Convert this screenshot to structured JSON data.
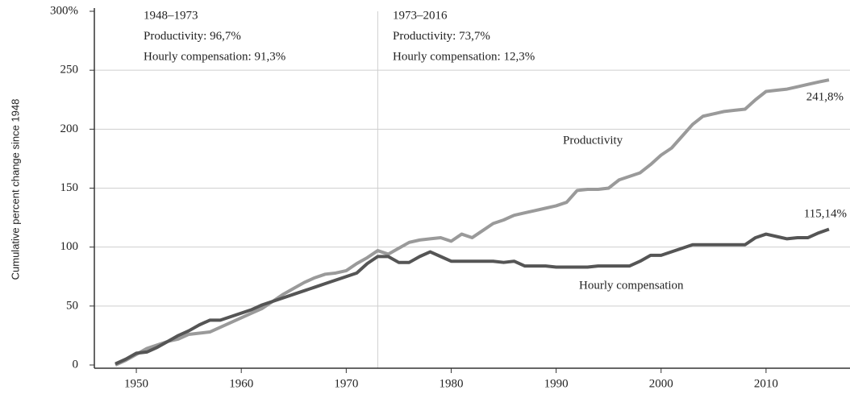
{
  "chart_data": {
    "type": "line",
    "y_label": "Cumulative percent change since 1948",
    "annotations": [
      [
        "1948–1973",
        "Productivity: 96,7%",
        "Hourly compensation: 91,3%"
      ],
      [
        "1973–2016",
        "Productivity: 73,7%",
        "Hourly compensation: 12,3%"
      ]
    ],
    "divider_x": 1973,
    "x": [
      1948,
      1949,
      1950,
      1951,
      1952,
      1953,
      1954,
      1955,
      1956,
      1957,
      1958,
      1959,
      1960,
      1961,
      1962,
      1963,
      1964,
      1965,
      1966,
      1967,
      1968,
      1969,
      1970,
      1971,
      1972,
      1973,
      1974,
      1975,
      1976,
      1977,
      1978,
      1979,
      1980,
      1981,
      1982,
      1983,
      1984,
      1985,
      1986,
      1987,
      1988,
      1989,
      1990,
      1991,
      1992,
      1993,
      1994,
      1995,
      1996,
      1997,
      1998,
      1999,
      2000,
      2001,
      2002,
      2003,
      2004,
      2005,
      2006,
      2007,
      2008,
      2009,
      2010,
      2011,
      2012,
      2013,
      2014,
      2015,
      2016
    ],
    "series": [
      {
        "name": "Productivity",
        "color": "#9a9a9a",
        "values": [
          0,
          4,
          9,
          14,
          17,
          20,
          22,
          26,
          27,
          28,
          32,
          36,
          40,
          44,
          48,
          54,
          60,
          65,
          70,
          74,
          77,
          78,
          80,
          86,
          91,
          97,
          94,
          99,
          104,
          106,
          107,
          108,
          105,
          111,
          108,
          114,
          120,
          123,
          127,
          129,
          131,
          133,
          135,
          138,
          148,
          149,
          149,
          150,
          157,
          160,
          163,
          170,
          178,
          184,
          194,
          204,
          211,
          213,
          215,
          216,
          217,
          225,
          232,
          233,
          234,
          236,
          238,
          240,
          241.8
        ],
        "value_labels": [
          null,
          null,
          null,
          null,
          null,
          null,
          null,
          null,
          null,
          null,
          null,
          null,
          null,
          null,
          null,
          null,
          null,
          null,
          null,
          null,
          null,
          null,
          null,
          null,
          null,
          null,
          null,
          null,
          null,
          null,
          null,
          null,
          null,
          null,
          null,
          null,
          null,
          null,
          null,
          null,
          null,
          null,
          null,
          null,
          null,
          null,
          null,
          null,
          null,
          null,
          null,
          null,
          null,
          null,
          null,
          null,
          null,
          null,
          null,
          null,
          null,
          null,
          null,
          null,
          null,
          null,
          null,
          null,
          "241,8%"
        ]
      },
      {
        "name": "Hourly compensation",
        "color": "#555555",
        "values": [
          1,
          5,
          10,
          11,
          15,
          20,
          25,
          29,
          34,
          38,
          38,
          41,
          44,
          47,
          51,
          54,
          57,
          60,
          63,
          66,
          69,
          72,
          75,
          78,
          86,
          92,
          92,
          87,
          87,
          92,
          96,
          92,
          88,
          88,
          88,
          88,
          88,
          87,
          88,
          84,
          84,
          84,
          83,
          83,
          83,
          83,
          84,
          84,
          84,
          84,
          88,
          93,
          93,
          96,
          99,
          102,
          102,
          102,
          102,
          102,
          102,
          108,
          111,
          109,
          107,
          108,
          108,
          112,
          115.14
        ],
        "value_labels": [
          null,
          null,
          null,
          null,
          null,
          null,
          null,
          null,
          null,
          null,
          null,
          null,
          null,
          null,
          null,
          null,
          null,
          null,
          null,
          null,
          null,
          null,
          null,
          null,
          null,
          null,
          null,
          null,
          null,
          null,
          null,
          null,
          null,
          null,
          null,
          null,
          null,
          null,
          null,
          null,
          null,
          null,
          null,
          null,
          null,
          null,
          null,
          null,
          null,
          null,
          null,
          null,
          null,
          null,
          null,
          null,
          null,
          null,
          null,
          null,
          null,
          null,
          null,
          null,
          null,
          null,
          null,
          null,
          "115,14%"
        ]
      }
    ],
    "xlim": [
      1946,
      2018
    ],
    "xticks": [
      1950,
      1960,
      1970,
      1980,
      1990,
      2000,
      2010
    ],
    "ylim": [
      0,
      300
    ],
    "yticks": [
      0,
      50,
      100,
      150,
      200,
      250,
      {
        "value": 300,
        "label": "300%"
      }
    ],
    "grid": true
  }
}
